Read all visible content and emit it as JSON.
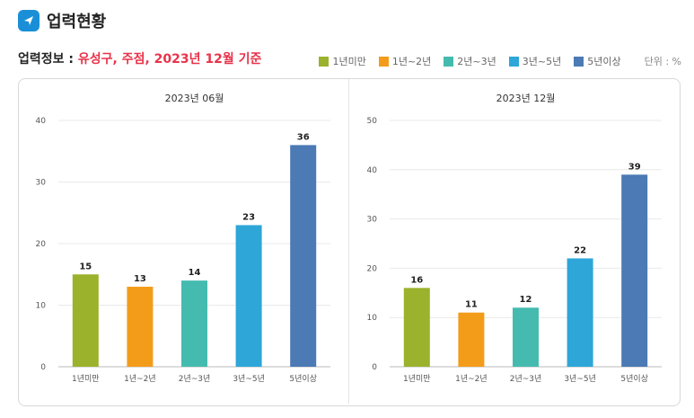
{
  "header": {
    "title": "업력현황"
  },
  "subtitle": {
    "label": "업력정보 : ",
    "value": "유성구, 주점, 2023년 12월 기준"
  },
  "legend": {
    "items": [
      {
        "label": "1년미만",
        "color": "#9bb22c"
      },
      {
        "label": "1년~2년",
        "color": "#f39c1a"
      },
      {
        "label": "2년~3년",
        "color": "#45bbb0"
      },
      {
        "label": "3년~5년",
        "color": "#2ea6d8"
      },
      {
        "label": "5년이상",
        "color": "#4b7ab4"
      }
    ],
    "unit": "단위 : %"
  },
  "chart_data": [
    {
      "type": "bar",
      "title": "2023년 06월",
      "categories": [
        "1년미만",
        "1년~2년",
        "2년~3년",
        "3년~5년",
        "5년이상"
      ],
      "values": [
        15,
        13,
        14,
        23,
        36
      ],
      "ylim": [
        0,
        40
      ],
      "yticks": [
        0,
        10,
        20,
        30,
        40
      ],
      "grid": true
    },
    {
      "type": "bar",
      "title": "2023년 12월",
      "categories": [
        "1년미만",
        "1년~2년",
        "2년~3년",
        "3년~5년",
        "5년이상"
      ],
      "values": [
        16,
        11,
        12,
        22,
        39
      ],
      "ylim": [
        0,
        50
      ],
      "yticks": [
        0,
        10,
        20,
        30,
        40,
        50
      ],
      "grid": true
    }
  ]
}
